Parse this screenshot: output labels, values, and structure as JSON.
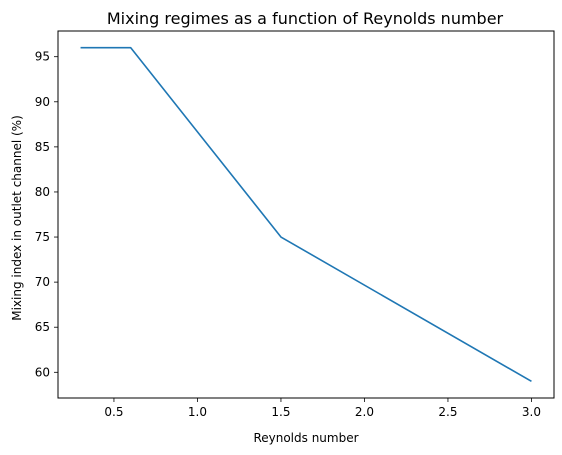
{
  "chart_data": {
    "type": "line",
    "title": "Mixing regimes as a function of Reynolds number",
    "xlabel": "Reynolds number",
    "ylabel": "Mixing index in outlet channel (%)",
    "xlim": [
      0.165,
      3.135
    ],
    "ylim": [
      57.15,
      97.85
    ],
    "xticks": [
      0.5,
      1.0,
      1.5,
      2.0,
      2.5,
      3.0
    ],
    "xtick_labels": [
      "0.5",
      "1.0",
      "1.5",
      "2.0",
      "2.5",
      "3.0"
    ],
    "yticks": [
      60,
      65,
      70,
      75,
      80,
      85,
      90,
      95
    ],
    "ytick_labels": [
      "60",
      "65",
      "70",
      "75",
      "80",
      "85",
      "90",
      "95"
    ],
    "grid": false,
    "series": [
      {
        "color": "#1f77b4",
        "x": [
          0.3,
          0.6,
          1.5,
          3.0
        ],
        "y": [
          96,
          96,
          75,
          59
        ]
      }
    ]
  }
}
